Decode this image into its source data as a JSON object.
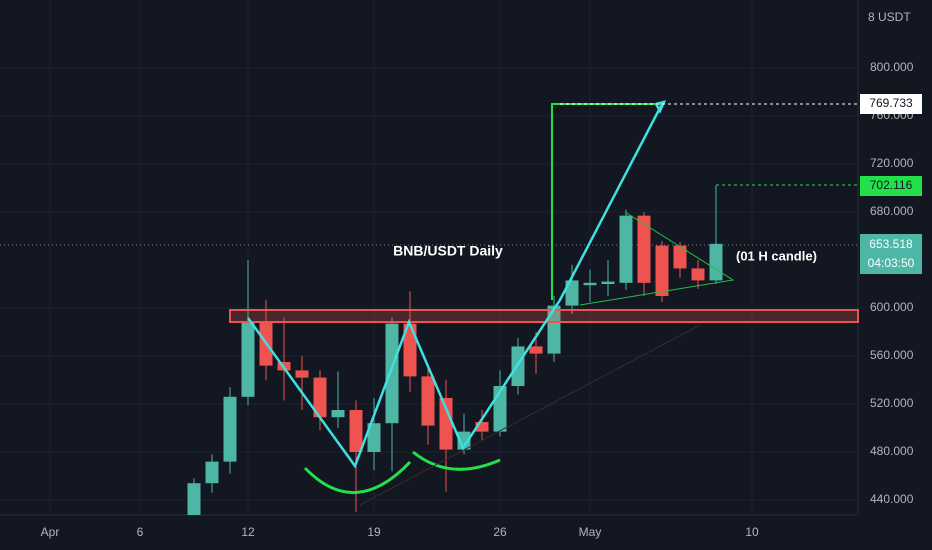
{
  "chart_data": {
    "type": "candlestick",
    "title": "BNB/USDT Daily",
    "annotation": "(01 H candle)",
    "axis_unit": "8 USDT",
    "x": [
      "Apr 9",
      "Apr 10",
      "Apr 11",
      "Apr 12",
      "Apr 13",
      "Apr 14",
      "Apr 15",
      "Apr 16",
      "Apr 17",
      "Apr 18",
      "Apr 19",
      "Apr 20",
      "Apr 21",
      "Apr 22",
      "Apr 23",
      "Apr 24",
      "Apr 25",
      "Apr 26",
      "Apr 27",
      "Apr 28",
      "Apr 29",
      "Apr 30",
      "May 1",
      "May 2",
      "May 3",
      "May 4",
      "May 5",
      "May 6",
      "May 7",
      "May 8"
    ],
    "open": [
      425,
      454,
      472,
      526,
      588,
      555,
      548,
      542,
      509,
      515,
      480,
      504,
      587,
      543,
      525,
      482,
      505,
      497,
      535,
      568,
      562,
      602,
      619,
      620,
      621,
      677,
      652,
      652,
      633,
      623
    ],
    "high": [
      458,
      478,
      534,
      640,
      607,
      592,
      560,
      548,
      547,
      523,
      525,
      592,
      614,
      550,
      540,
      512,
      515,
      548,
      575,
      580,
      610,
      636,
      632,
      640,
      682,
      680,
      656,
      655,
      640,
      702
    ],
    "low": [
      428,
      446,
      462,
      519,
      540,
      523,
      515,
      498,
      500,
      430,
      465,
      464,
      530,
      486,
      447,
      478,
      490,
      493,
      528,
      545,
      555,
      595,
      605,
      610,
      615,
      610,
      605,
      625,
      616,
      620
    ],
    "close": [
      454,
      472,
      526,
      588,
      552,
      548,
      542,
      509,
      515,
      480,
      504,
      587,
      543,
      502,
      482,
      497,
      497,
      535,
      568,
      562,
      602,
      623,
      621,
      622,
      677,
      621,
      610,
      633,
      623,
      653.5
    ],
    "up_color": "#4db6a5",
    "down_color": "#ef5350",
    "ylim": [
      427.5,
      856.7
    ],
    "yticks": [
      {
        "value": 440,
        "label": "440.000"
      },
      {
        "value": 480,
        "label": "480.000"
      },
      {
        "value": 520,
        "label": "520.000"
      },
      {
        "value": 560,
        "label": "560.000"
      },
      {
        "value": 600,
        "label": "600.000"
      },
      {
        "value": 680,
        "label": "680.000"
      },
      {
        "value": 720,
        "label": "720.000"
      },
      {
        "value": 760,
        "label": "760.000"
      },
      {
        "value": 800,
        "label": "800.000"
      }
    ],
    "xticks": [
      {
        "value": "Apr 1",
        "label": "Apr"
      },
      {
        "value": "Apr 6",
        "label": "6"
      },
      {
        "value": "Apr 12",
        "label": "12"
      },
      {
        "value": "Apr 19",
        "label": "19"
      },
      {
        "value": "Apr 26",
        "label": "26"
      },
      {
        "value": "May 1",
        "label": "May"
      },
      {
        "value": "May 10",
        "label": "10"
      }
    ],
    "price_labels": {
      "target": "769.733",
      "high": "702.116",
      "last": "653.518",
      "countdown": "04:03:50"
    },
    "grid": true
  }
}
